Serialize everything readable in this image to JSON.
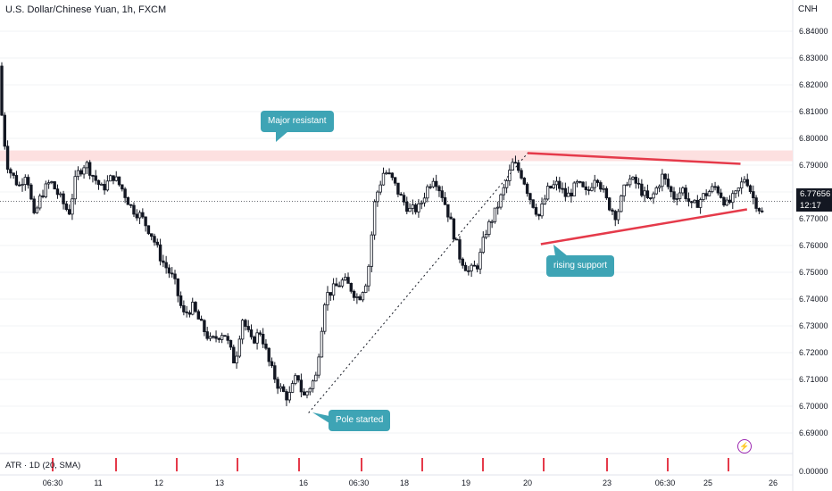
{
  "header": {
    "title": "U.S. Dollar/Chinese Yuan, 1h, FXCM",
    "currency": "CNH"
  },
  "annotations": {
    "major_resistant": "Major resistant",
    "rising_support": "rising support",
    "pole_started": "Pole started"
  },
  "current_price": {
    "value": "6.77656",
    "countdown": "12:17"
  },
  "indicator": {
    "label": "ATR · 1D (20, SMA)",
    "value_label": "0.00000",
    "bolt_icon": "lightning-icon"
  },
  "colors": {
    "up": "#131722",
    "down": "#131722",
    "resistance_band": "#fde0e0",
    "trendline": "#e53a4a",
    "callout": "#3ea4b5",
    "atr_bar": "#e53a4a"
  },
  "chart_data": {
    "type": "candlestick",
    "symbol": "USDCNH",
    "interval": "1h",
    "y_axis": {
      "min": 6.685,
      "max": 6.845,
      "ticks": [
        "6.84000",
        "6.83000",
        "6.82000",
        "6.81000",
        "6.80000",
        "6.79000",
        "6.78000",
        "6.77000",
        "6.76000",
        "6.75000",
        "6.74000",
        "6.73000",
        "6.72000",
        "6.71000",
        "6.70000",
        "6.69000"
      ]
    },
    "x_axis": {
      "ticks": [
        "06:30",
        "11",
        "12",
        "13",
        "16",
        "06:30",
        "18",
        "19",
        "20",
        "23",
        "06:30",
        "25",
        "26"
      ]
    },
    "resistance_zone": [
      6.7915,
      6.7955
    ],
    "descending_line": {
      "from": [
        20,
        6.7945
      ],
      "to": [
        25.5,
        6.7905
      ]
    },
    "rising_support": {
      "from": [
        20.5,
        6.7605
      ],
      "to": [
        25.6,
        6.7735
      ]
    },
    "pole_line": {
      "from": [
        16.1,
        6.6975
      ],
      "to": [
        20,
        6.7945
      ]
    },
    "last_close": 6.77656,
    "path": [
      [
        0.0,
        6.827
      ],
      [
        0.02,
        6.804
      ],
      [
        0.05,
        6.789
      ],
      [
        0.11,
        6.782
      ],
      [
        0.15,
        6.788
      ],
      [
        0.19,
        6.77
      ],
      [
        0.23,
        6.779
      ],
      [
        0.28,
        6.784
      ],
      [
        0.33,
        6.778
      ],
      [
        0.38,
        6.772
      ],
      [
        0.42,
        6.786
      ],
      [
        0.47,
        6.791
      ],
      [
        0.52,
        6.785
      ],
      [
        0.56,
        6.781
      ],
      [
        0.62,
        6.786
      ],
      [
        0.67,
        6.781
      ],
      [
        0.72,
        6.774
      ],
      [
        0.77,
        6.771
      ],
      [
        0.83,
        6.764
      ],
      [
        0.88,
        6.755
      ],
      [
        0.95,
        6.747
      ],
      [
        1.0,
        6.734
      ],
      [
        1.05,
        6.737
      ],
      [
        1.1,
        6.73
      ],
      [
        1.15,
        6.724
      ],
      [
        1.22,
        6.728
      ],
      [
        1.28,
        6.716
      ],
      [
        1.32,
        6.733
      ],
      [
        1.37,
        6.724
      ],
      [
        1.42,
        6.728
      ],
      [
        1.47,
        6.715
      ],
      [
        1.52,
        6.707
      ],
      [
        1.57,
        6.703
      ],
      [
        1.62,
        6.712
      ],
      [
        1.65,
        6.703
      ],
      [
        1.72,
        6.711
      ],
      [
        1.77,
        6.741
      ],
      [
        1.82,
        6.744
      ],
      [
        1.87,
        6.747
      ],
      [
        1.91,
        6.744
      ],
      [
        1.95,
        6.74
      ],
      [
        2.0,
        6.748
      ],
      [
        2.04,
        6.777
      ],
      [
        2.09,
        6.788
      ],
      [
        2.13,
        6.785
      ],
      [
        2.18,
        6.778
      ],
      [
        2.23,
        6.773
      ],
      [
        2.28,
        6.774
      ],
      [
        2.32,
        6.781
      ],
      [
        2.36,
        6.786
      ],
      [
        2.41,
        6.778
      ],
      [
        2.45,
        6.769
      ],
      [
        2.5,
        6.756
      ],
      [
        2.55,
        6.75
      ],
      [
        2.6,
        6.753
      ],
      [
        2.64,
        6.765
      ],
      [
        2.69,
        6.772
      ],
      [
        2.74,
        6.781
      ],
      [
        2.79,
        6.791
      ],
      [
        2.84,
        6.786
      ],
      [
        2.88,
        6.778
      ],
      [
        2.93,
        6.771
      ],
      [
        2.98,
        6.781
      ],
      [
        3.03,
        6.783
      ],
      [
        3.08,
        6.778
      ],
      [
        3.14,
        6.783
      ],
      [
        3.19,
        6.779
      ],
      [
        3.24,
        6.787
      ],
      [
        3.3,
        6.776
      ],
      [
        3.35,
        6.771
      ],
      [
        3.41,
        6.785
      ],
      [
        3.46,
        6.783
      ],
      [
        3.53,
        6.776
      ],
      [
        3.6,
        6.786
      ],
      [
        3.66,
        6.778
      ],
      [
        3.71,
        6.781
      ],
      [
        3.76,
        6.774
      ],
      [
        3.83,
        6.779
      ],
      [
        3.89,
        6.782
      ],
      [
        3.95,
        6.775
      ],
      [
        4.0,
        6.779
      ],
      [
        4.05,
        6.786
      ],
      [
        4.09,
        6.778
      ],
      [
        4.14,
        6.772
      ]
    ],
    "atr_markers": [
      "11",
      "12",
      "13",
      "16",
      "06:30",
      "18",
      "19",
      "20",
      "23",
      "06:30",
      "25"
    ]
  }
}
